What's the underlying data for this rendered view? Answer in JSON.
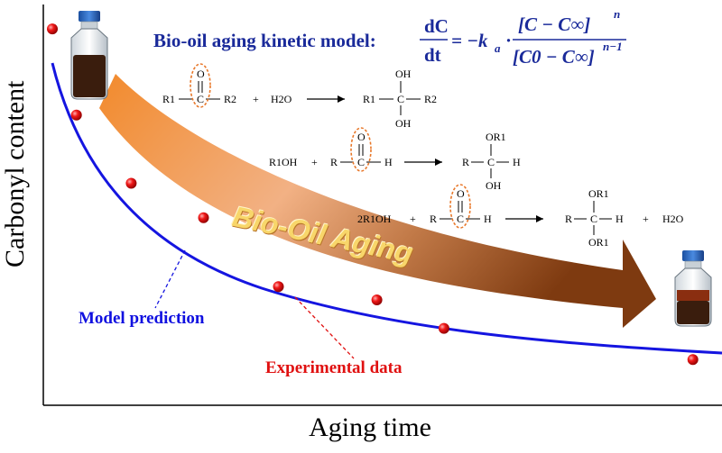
{
  "axes": {
    "y_label": "Carbonyl content",
    "x_label": "Aging time"
  },
  "title": "Bio-oil aging kinetic model:",
  "equation": {
    "lhs_num": "dC",
    "lhs_den": "dt",
    "minus_k": "= −k",
    "k_sub": "a",
    "dot": "·",
    "num": "[C − C∞]",
    "num_exp": "n",
    "den": "[C0 − C∞]",
    "den_exp": "n−1"
  },
  "reactions": {
    "r1": {
      "reactant_left": "R1",
      "reactant_right": "R2",
      "plus": "+",
      "water": "H2O",
      "oxygen": "O",
      "carbon": "C",
      "p_left": "R1",
      "p_right": "R2",
      "p_top": "OH",
      "p_bottom": "OH"
    },
    "r2": {
      "alcohol": "R1OH",
      "plus": "+",
      "r": "R",
      "carbon": "C",
      "h": "H",
      "oxygen": "O",
      "p_left": "R",
      "p_right": "H",
      "p_top": "OR1",
      "p_bottom": "OH"
    },
    "r3": {
      "alcohol": "2R1OH",
      "plus": "+",
      "r": "R",
      "carbon": "C",
      "h": "H",
      "oxygen": "O",
      "p_left": "R",
      "p_right": "H",
      "p_top": "OR1",
      "p_bottom": "OR1",
      "plus2": "+",
      "water": "H2O"
    }
  },
  "arrow_text": "Bio-Oil Aging",
  "labels": {
    "model": "Model prediction",
    "experimental": "Experimental data"
  },
  "colors": {
    "curve": "#1515e0",
    "points": "#e81818",
    "title": "#1a2a9a",
    "arrow_start": "#f08a30",
    "arrow_end": "#8a3d10",
    "ellipse": "#e8782a"
  },
  "icons": [
    "bottle-fresh-icon",
    "bottle-aged-icon"
  ],
  "chart_data": {
    "type": "scatter",
    "xlabel": "Aging time",
    "ylabel": "Carbonyl content",
    "series": [
      {
        "name": "Experimental data",
        "points": [
          [
            0.0,
            0.939
          ],
          [
            0.037,
            0.724
          ],
          [
            0.121,
            0.554
          ],
          [
            0.232,
            0.468
          ],
          [
            0.347,
            0.296
          ],
          [
            0.498,
            0.263
          ],
          [
            0.601,
            0.192
          ],
          [
            0.983,
            0.114
          ]
        ]
      },
      {
        "name": "Model prediction",
        "type": "line"
      }
    ]
  }
}
